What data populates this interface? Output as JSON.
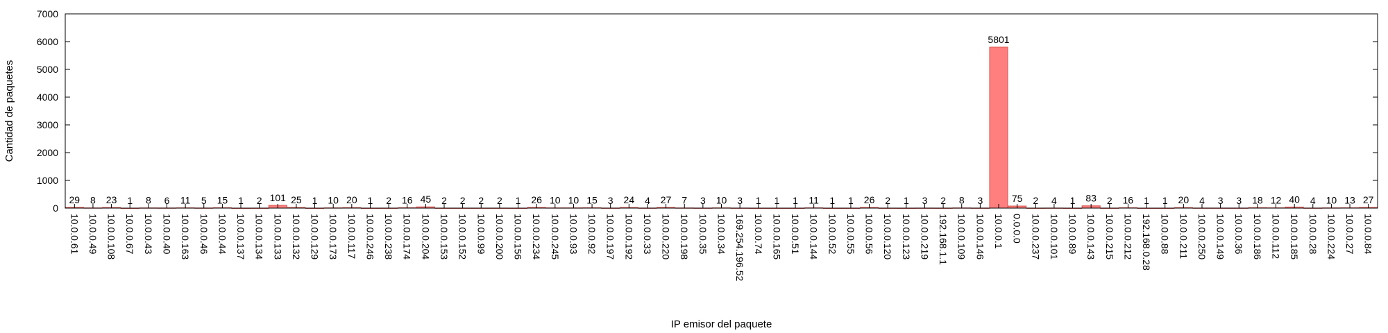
{
  "chart_data": {
    "type": "bar",
    "title": "",
    "xlabel": "IP emisor del paquete",
    "ylabel": "Cantidad de paquetes",
    "ylim": [
      0,
      7000
    ],
    "yticks": [
      0,
      1000,
      2000,
      3000,
      4000,
      5000,
      6000,
      7000
    ],
    "grid": false,
    "legend": "none",
    "bar_color": "#ff7f7f",
    "bar_edge_color": "#d9534f",
    "categories": [
      "10.0.0.61",
      "10.0.0.49",
      "10.0.0.108",
      "10.0.0.67",
      "10.0.0.43",
      "10.0.0.40",
      "10.0.0.163",
      "10.0.0.46",
      "10.0.0.44",
      "10.0.0.137",
      "10.0.0.134",
      "10.0.0.133",
      "10.0.0.132",
      "10.0.0.129",
      "10.0.0.173",
      "10.0.0.117",
      "10.0.0.246",
      "10.0.0.238",
      "10.0.0.174",
      "10.0.0.204",
      "10.0.0.153",
      "10.0.0.152",
      "10.0.0.99",
      "10.0.0.200",
      "10.0.0.156",
      "10.0.0.234",
      "10.0.0.245",
      "10.0.0.93",
      "10.0.0.92",
      "10.0.0.197",
      "10.0.0.192",
      "10.0.0.33",
      "10.0.0.220",
      "10.0.0.198",
      "10.0.0.35",
      "10.0.0.34",
      "169.254.196.52",
      "10.0.0.74",
      "10.0.0.165",
      "10.0.0.51",
      "10.0.0.144",
      "10.0.0.52",
      "10.0.0.55",
      "10.0.0.56",
      "10.0.0.120",
      "10.0.0.123",
      "10.0.0.219",
      "192.168.1.1",
      "10.0.0.109",
      "10.0.0.146",
      "10.0.0.1",
      "0.0.0.0",
      "10.0.0.237",
      "10.0.0.101",
      "10.0.0.89",
      "10.0.0.143",
      "10.0.0.215",
      "10.0.0.212",
      "192.168.0.28",
      "10.0.0.88",
      "10.0.0.211",
      "10.0.0.250",
      "10.0.0.149",
      "10.0.0.36",
      "10.0.0.186",
      "10.0.0.112",
      "10.0.0.185",
      "10.0.0.28",
      "10.0.0.224",
      "10.0.0.27",
      "10.0.0.84"
    ],
    "values": [
      29,
      8,
      23,
      1,
      8,
      6,
      11,
      5,
      15,
      1,
      2,
      101,
      25,
      1,
      10,
      20,
      1,
      2,
      16,
      45,
      2,
      2,
      2,
      2,
      1,
      26,
      10,
      10,
      15,
      3,
      24,
      4,
      27,
      7,
      3,
      10,
      3,
      1,
      1,
      1,
      11,
      1,
      1,
      26,
      2,
      1,
      3,
      2,
      8,
      3,
      5801,
      75,
      2,
      4,
      1,
      83,
      2,
      16,
      1,
      1,
      20,
      4,
      3,
      3,
      18,
      12,
      40,
      4,
      10,
      13,
      27
    ]
  }
}
